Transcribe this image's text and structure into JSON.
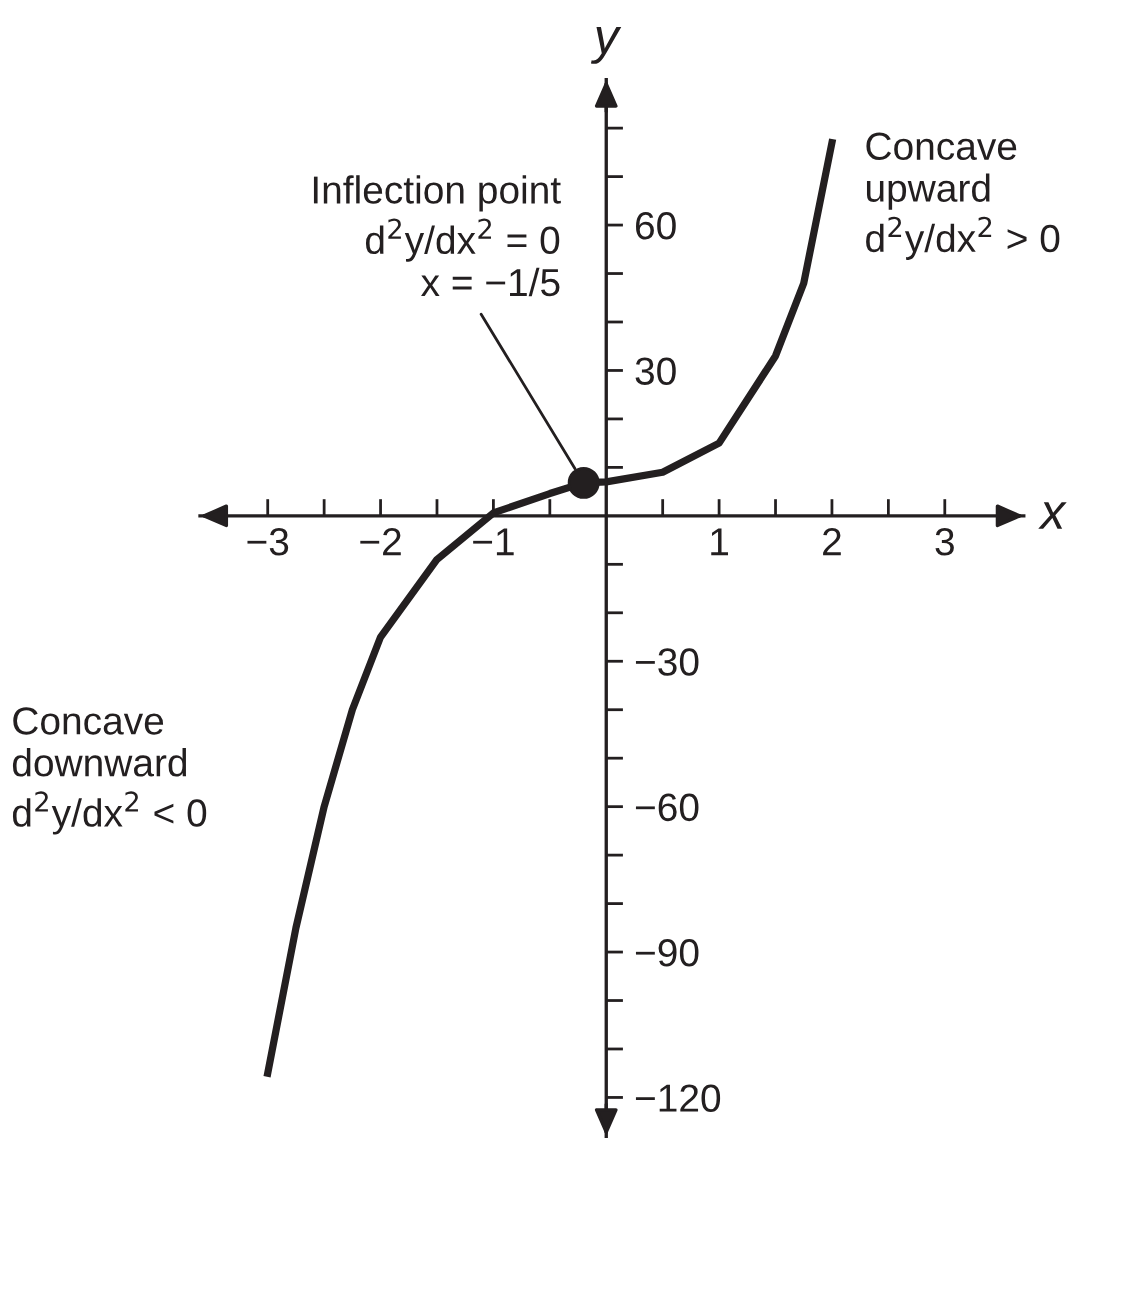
{
  "chart_data": {
    "type": "line",
    "xlabel": "x",
    "ylabel": "y",
    "xlim": [
      -3.6,
      3.7
    ],
    "ylim": [
      -128,
      90
    ],
    "xticks": [
      {
        "value": -3,
        "label": "−3"
      },
      {
        "value": -2.5,
        "label": null
      },
      {
        "value": -2,
        "label": "−2"
      },
      {
        "value": -1.5,
        "label": null
      },
      {
        "value": -1,
        "label": "−1"
      },
      {
        "value": -0.5,
        "label": null
      },
      {
        "value": 0.5,
        "label": null
      },
      {
        "value": 1,
        "label": "1"
      },
      {
        "value": 1.5,
        "label": null
      },
      {
        "value": 2,
        "label": "2"
      },
      {
        "value": 2.5,
        "label": null
      },
      {
        "value": 3,
        "label": "3"
      }
    ],
    "yticks": [
      {
        "value": -120,
        "label": "−120"
      },
      {
        "value": -110,
        "label": null
      },
      {
        "value": -100,
        "label": null
      },
      {
        "value": -90,
        "label": "−90"
      },
      {
        "value": -80,
        "label": null
      },
      {
        "value": -70,
        "label": null
      },
      {
        "value": -60,
        "label": "−60"
      },
      {
        "value": -50,
        "label": null
      },
      {
        "value": -40,
        "label": null
      },
      {
        "value": -30,
        "label": "−30"
      },
      {
        "value": -20,
        "label": null
      },
      {
        "value": -10,
        "label": null
      },
      {
        "value": 10,
        "label": null
      },
      {
        "value": 20,
        "label": null
      },
      {
        "value": 30,
        "label": "30"
      },
      {
        "value": 40,
        "label": null
      },
      {
        "value": 50,
        "label": null
      },
      {
        "value": 60,
        "label": "60"
      },
      {
        "value": 70,
        "label": null
      },
      {
        "value": 80,
        "label": null
      }
    ],
    "grid": false,
    "legend": false,
    "series": [
      {
        "type": "line",
        "color": "#231f20",
        "marker": "none",
        "line_style": "solid",
        "x": [
          -3.0,
          -2.75,
          -2.5,
          -2.25,
          -2.0,
          -1.5,
          -1.0,
          -0.5,
          -0.2,
          0,
          0.5,
          1.0,
          1.5,
          1.75,
          2.0
        ],
        "values": [
          -115,
          -85,
          -60,
          -40,
          -25,
          -9,
          0.6,
          4.6,
          6.8,
          7,
          9,
          15,
          33,
          48,
          77
        ]
      },
      {
        "type": "scatter",
        "color": "#231f20",
        "marker": "circle",
        "x": [
          -0.2
        ],
        "values": [
          6.8
        ]
      }
    ],
    "annotations": [
      {
        "text": "Inflection point\nd$^{2}$y/dx$^{2}$ = 0\nx = −1/5",
        "x": -0.2,
        "y": 6.8
      },
      "Concave\nupward\nd$^{2}$y/dx$^{2}$ > 0",
      "Concave\ndownward\nd$^{2}$y/dx$^{2}$ < 0"
    ]
  }
}
